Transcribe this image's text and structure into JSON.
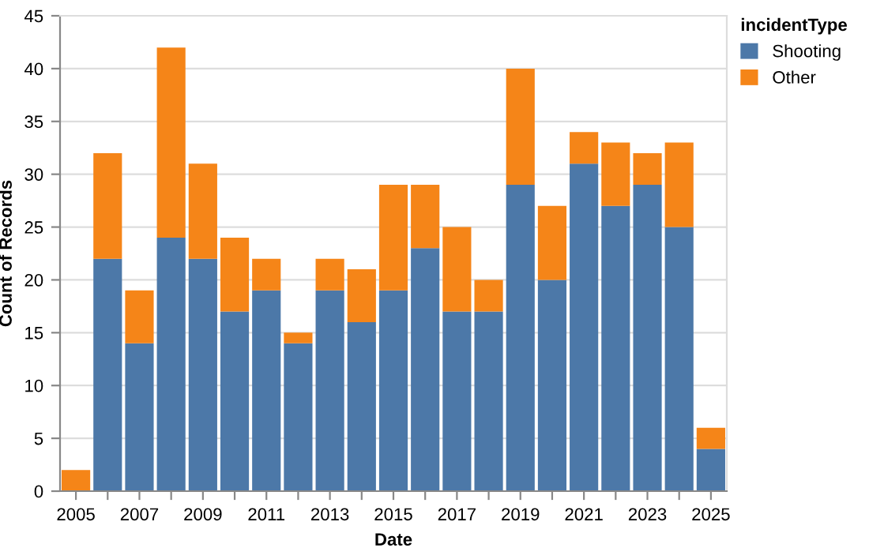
{
  "chart_data": {
    "type": "bar",
    "stacked": true,
    "xlabel": "Date",
    "ylabel": "Count of Records",
    "legend_title": "incidentType",
    "legend": "top right",
    "categories": [
      "2005",
      null,
      "2007",
      null,
      "2009",
      null,
      "2011",
      null,
      "2013",
      null,
      "2015",
      null,
      "2017",
      null,
      "2019",
      null,
      "2021",
      null,
      "2023",
      null,
      "2025"
    ],
    "series": [
      {
        "name": "Shooting",
        "color": "#4c78a8",
        "values": [
          0,
          22,
          14,
          24,
          22,
          17,
          19,
          14,
          19,
          16,
          19,
          23,
          17,
          17,
          29,
          20,
          31,
          27,
          29,
          25,
          4
        ]
      },
      {
        "name": "Other",
        "color": "#f58518",
        "values": [
          2,
          10,
          5,
          18,
          9,
          7,
          3,
          1,
          3,
          5,
          10,
          6,
          8,
          3,
          11,
          7,
          3,
          6,
          3,
          8,
          2
        ]
      }
    ],
    "ylim": [
      0,
      45
    ],
    "yticks": [
      0,
      5,
      10,
      15,
      20,
      25,
      30,
      35,
      40,
      45
    ],
    "grid": "y"
  }
}
